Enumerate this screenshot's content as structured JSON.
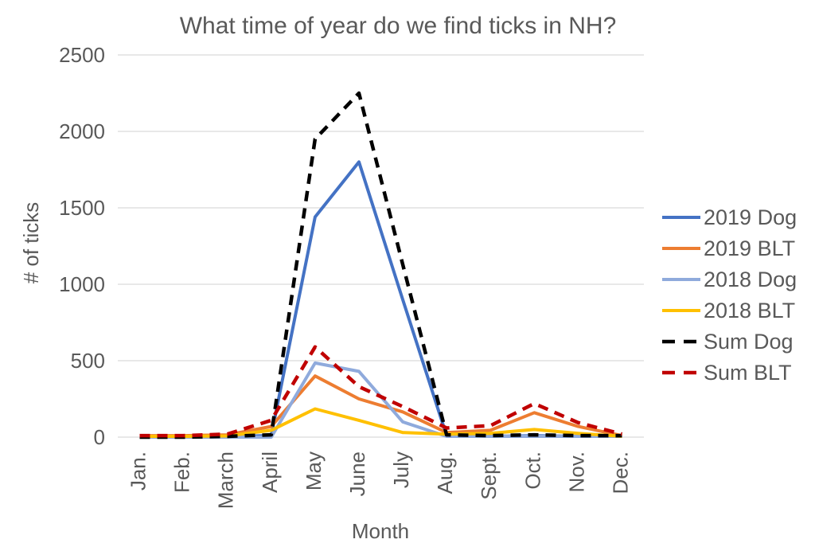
{
  "chart_data": {
    "type": "line",
    "title": "What time of year do we find ticks in NH?",
    "xlabel": "Month",
    "ylabel": "# of ticks",
    "categories": [
      "Jan.",
      "Feb.",
      "March",
      "April",
      "May",
      "June",
      "July",
      "Aug.",
      "Sept.",
      "Oct.",
      "Nov.",
      "Dec."
    ],
    "ylim": [
      0,
      2500
    ],
    "yticks": [
      0,
      500,
      1000,
      1500,
      2000,
      2500
    ],
    "grid": true,
    "legend_position": "right",
    "series": [
      {
        "name": "2019 Dog",
        "color": "#4472C4",
        "style": "solid",
        "values": [
          0,
          0,
          5,
          10,
          1440,
          1800,
          900,
          10,
          5,
          10,
          5,
          5
        ]
      },
      {
        "name": "2019 BLT",
        "color": "#ED7D31",
        "style": "solid",
        "values": [
          10,
          10,
          15,
          70,
          400,
          250,
          165,
          30,
          45,
          160,
          70,
          10
        ]
      },
      {
        "name": "2018 Dog",
        "color": "#8FAADC",
        "style": "solid",
        "values": [
          0,
          0,
          0,
          0,
          485,
          430,
          100,
          5,
          5,
          5,
          5,
          5
        ]
      },
      {
        "name": "2018 BLT",
        "color": "#FFC000",
        "style": "solid",
        "values": [
          5,
          5,
          8,
          45,
          185,
          110,
          30,
          20,
          25,
          50,
          25,
          5
        ]
      },
      {
        "name": "Sum Dog",
        "color": "#000000",
        "style": "dashed",
        "values": [
          0,
          0,
          5,
          15,
          1950,
          2250,
          1130,
          15,
          10,
          15,
          10,
          10
        ]
      },
      {
        "name": "Sum BLT",
        "color": "#C00000",
        "style": "dashed",
        "values": [
          10,
          10,
          20,
          110,
          590,
          330,
          200,
          60,
          75,
          220,
          95,
          20
        ]
      }
    ],
    "styling": {
      "text_color": "#595959",
      "grid_color": "#D9D9D9"
    }
  }
}
